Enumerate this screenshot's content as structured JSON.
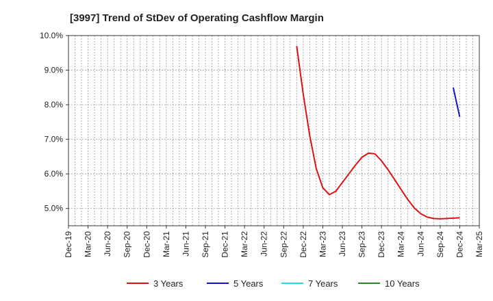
{
  "chart_data": {
    "type": "line",
    "title": "[3997]  Trend of StDev of Operating Cashflow Margin",
    "xlabel": "",
    "ylabel": "",
    "x_ticks": [
      "Dec-19",
      "Mar-20",
      "Jun-20",
      "Sep-20",
      "Dec-20",
      "Mar-21",
      "Jun-21",
      "Sep-21",
      "Dec-21",
      "Mar-22",
      "Jun-22",
      "Sep-22",
      "Dec-22",
      "Mar-23",
      "Jun-23",
      "Sep-23",
      "Dec-23",
      "Mar-24",
      "Jun-24",
      "Sep-24",
      "Dec-24",
      "Mar-25"
    ],
    "y_ticks": [
      "5.0%",
      "6.0%",
      "7.0%",
      "8.0%",
      "9.0%",
      "10.0%"
    ],
    "y_tick_values": [
      5.0,
      6.0,
      7.0,
      8.0,
      9.0,
      10.0
    ],
    "ylim": [
      4.5,
      10.0
    ],
    "x_unit": "month",
    "grid": true,
    "legend_position": "bottom",
    "series": [
      {
        "name": "3 Years",
        "color": "#dd1111",
        "x": [
          "Nov-22",
          "Dec-22",
          "Jan-23",
          "Feb-23",
          "Mar-23",
          "Apr-23",
          "May-23",
          "Jun-23",
          "Jul-23",
          "Aug-23",
          "Sep-23",
          "Oct-23",
          "Nov-23",
          "Dec-23",
          "Jan-24",
          "Feb-24",
          "Mar-24",
          "Apr-24",
          "May-24",
          "Jun-24",
          "Jul-24",
          "Aug-24",
          "Sep-24",
          "Oct-24",
          "Nov-24",
          "Dec-24"
        ],
        "values": [
          9.7,
          8.3,
          7.1,
          6.15,
          5.6,
          5.4,
          5.5,
          5.75,
          6.0,
          6.25,
          6.48,
          6.6,
          6.58,
          6.38,
          6.12,
          5.84,
          5.55,
          5.27,
          5.02,
          4.85,
          4.75,
          4.71,
          4.7,
          4.71,
          4.72,
          4.73
        ]
      },
      {
        "name": "5 Years",
        "color": "#1111cc",
        "x": [
          "Nov-24",
          "Dec-24"
        ],
        "values": [
          8.5,
          7.65
        ]
      },
      {
        "name": "7 Years",
        "color": "#22dddd",
        "x": [],
        "values": []
      },
      {
        "name": "10 Years",
        "color": "#228822",
        "x": [],
        "values": []
      }
    ]
  }
}
